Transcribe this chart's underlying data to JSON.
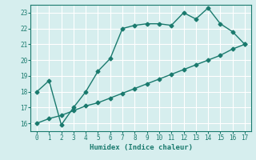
{
  "xlabel": "Humidex (Indice chaleur)",
  "background_color": "#d6eeee",
  "line_color": "#1a7a6e",
  "grid_color": "#ffffff",
  "xlim": [
    -0.5,
    17.5
  ],
  "ylim": [
    15.5,
    23.5
  ],
  "xticks": [
    0,
    1,
    2,
    3,
    4,
    5,
    6,
    7,
    8,
    9,
    10,
    11,
    12,
    13,
    14,
    15,
    16,
    17
  ],
  "yticks": [
    16,
    17,
    18,
    19,
    20,
    21,
    22,
    23
  ],
  "curve1_x": [
    0,
    1,
    2,
    3,
    4,
    5,
    6,
    7,
    8,
    9,
    10,
    11,
    12,
    13,
    14,
    15,
    16,
    17
  ],
  "curve1_y": [
    18.0,
    18.7,
    15.9,
    17.0,
    18.0,
    19.3,
    20.1,
    22.0,
    22.2,
    22.3,
    22.3,
    22.2,
    23.0,
    22.6,
    23.3,
    22.3,
    21.8,
    21.0
  ],
  "curve2_x": [
    0,
    1,
    2,
    3,
    4,
    5,
    6,
    7,
    8,
    9,
    10,
    11,
    12,
    13,
    14,
    15,
    16,
    17
  ],
  "curve2_y": [
    16.0,
    16.3,
    16.5,
    16.8,
    17.1,
    17.3,
    17.6,
    17.9,
    18.2,
    18.5,
    18.8,
    19.1,
    19.4,
    19.7,
    20.0,
    20.3,
    20.7,
    21.0
  ]
}
